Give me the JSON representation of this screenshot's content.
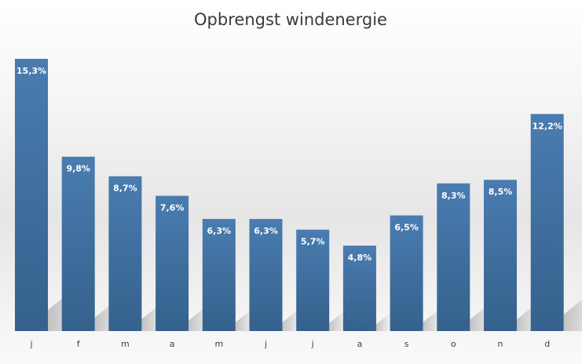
{
  "chart_data": {
    "type": "bar",
    "title": "Opbrengst windenergie",
    "xlabel": "",
    "ylabel": "",
    "categories": [
      "j",
      "f",
      "m",
      "a",
      "m",
      "j",
      "j",
      "a",
      "s",
      "o",
      "n",
      "d"
    ],
    "values": [
      15.3,
      9.8,
      8.7,
      7.6,
      6.3,
      6.3,
      5.7,
      4.8,
      6.5,
      8.3,
      8.5,
      12.2
    ],
    "data_labels": [
      "15,3%",
      "9,8%",
      "8,7%",
      "7,6%",
      "6,3%",
      "6,3%",
      "5,7%",
      "4,8%",
      "6,5%",
      "8,3%",
      "8,5%",
      "12,2%"
    ],
    "ylim": [
      0,
      15.3
    ],
    "grid": false,
    "legend": "none",
    "colors": {
      "bar_top": "#4a7cb0",
      "bar_bottom": "#35618c"
    }
  }
}
